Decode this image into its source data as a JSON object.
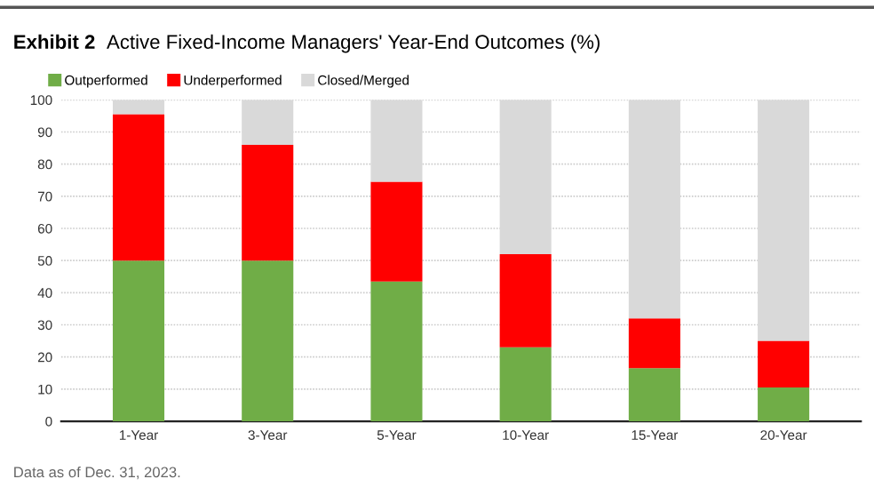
{
  "chart_data": {
    "type": "bar",
    "stacked": true,
    "title": "Exhibit 2",
    "subtitle": "Active Fixed-Income Managers' Year-End Outcomes (%)",
    "categories": [
      "1-Year",
      "3-Year",
      "5-Year",
      "10-Year",
      "15-Year",
      "20-Year"
    ],
    "series": [
      {
        "name": "Outperformed",
        "color": "#70ad47",
        "values": [
          50,
          50,
          43.5,
          23,
          16.5,
          10.5
        ]
      },
      {
        "name": "Underperformed",
        "color": "#ff0000",
        "values": [
          45.5,
          36,
          31,
          29,
          15.5,
          14.5
        ]
      },
      {
        "name": "Closed/Merged",
        "color": "#d9d9d9",
        "values": [
          4.5,
          14,
          25.5,
          48,
          68,
          75
        ]
      }
    ],
    "ylim": [
      0,
      100
    ],
    "yticks": [
      0,
      10,
      20,
      30,
      40,
      50,
      60,
      70,
      80,
      90,
      100
    ],
    "grid": "y",
    "legend": "top left",
    "annotations": [
      "Data as of Dec. 31, 2023."
    ]
  }
}
